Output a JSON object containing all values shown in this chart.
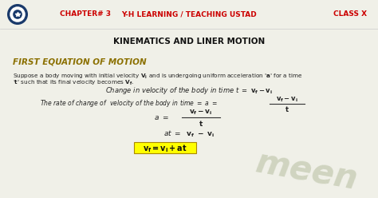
{
  "bg_color": "#f0f0e8",
  "header_bg": "#ffffff",
  "header_left": "CHAPTER# 3",
  "header_center": "Y-H LEARNING / TEACHING USTAD",
  "header_right": "CLASS X",
  "header_color": "#cc0000",
  "subtitle": "KINEMATICS AND LINER MOTION",
  "subtitle_color": "#111111",
  "section_title": "FIRST EQUATION OF MOTION",
  "section_title_color": "#8B7000",
  "watermark": "meen",
  "watermark_color": "#b0b898",
  "eq4_bg": "#ffff00"
}
